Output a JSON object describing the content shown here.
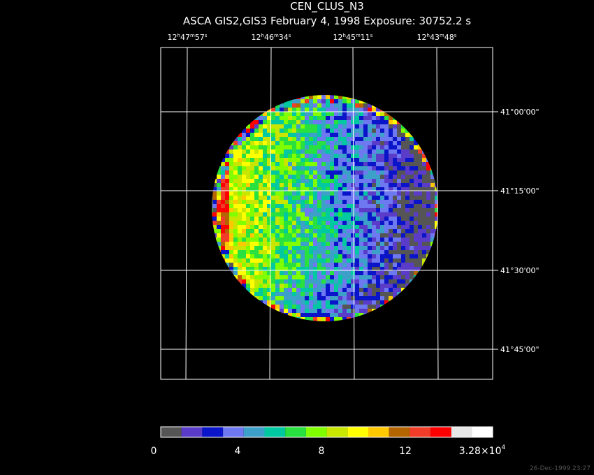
{
  "header": {
    "title": "CEN_CLUS_N3",
    "subtitle": "ASCA GIS2,GIS3 February 4, 1998 Exposure: 30752.2 s"
  },
  "ra_labels": [
    [
      "12",
      "h",
      "47",
      "m",
      "57",
      "s"
    ],
    [
      "12",
      "h",
      "46",
      "m",
      "34",
      "s"
    ],
    [
      "12",
      "h",
      "45",
      "m",
      "11",
      "s"
    ],
    [
      "12",
      "h",
      "43",
      "m",
      "48",
      "s"
    ]
  ],
  "dec_labels": [
    "41°00'00\"",
    "41°15'00\"",
    "41°30'00\"",
    "41°45'00\""
  ],
  "colorbar": {
    "colors": [
      "#555555",
      "#5a3cc8",
      "#0a14c8",
      "#6e78f0",
      "#3ca0c8",
      "#00c8a0",
      "#28e040",
      "#80ff00",
      "#c8e600",
      "#ffff00",
      "#ffc800",
      "#b46400",
      "#f03c28",
      "#ff0000",
      "#e6e6e6",
      "#ffffff"
    ],
    "tick_labels": [
      "0",
      "4",
      "8",
      "12",
      [
        "3.28×10",
        "4"
      ]
    ]
  },
  "footer": {
    "timestamp": "26-Dec-1999 23:27"
  }
}
